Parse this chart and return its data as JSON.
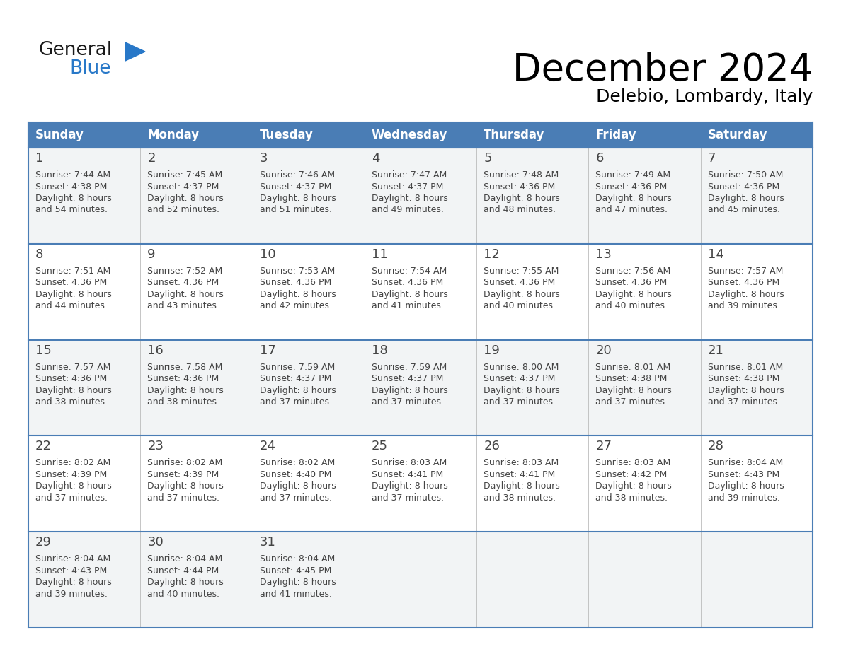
{
  "title": "December 2024",
  "subtitle": "Delebio, Lombardy, Italy",
  "header_color": "#4A7DB5",
  "header_text_color": "#FFFFFF",
  "cell_bg_even": "#F2F4F5",
  "cell_bg_odd": "#FFFFFF",
  "border_color": "#4A7DB5",
  "text_color": "#444444",
  "days_of_week": [
    "Sunday",
    "Monday",
    "Tuesday",
    "Wednesday",
    "Thursday",
    "Friday",
    "Saturday"
  ],
  "weeks": [
    [
      {
        "day": 1,
        "sunrise": "7:44 AM",
        "sunset": "4:38 PM",
        "daylight_a": "8 hours",
        "daylight_b": "and 54 minutes."
      },
      {
        "day": 2,
        "sunrise": "7:45 AM",
        "sunset": "4:37 PM",
        "daylight_a": "8 hours",
        "daylight_b": "and 52 minutes."
      },
      {
        "day": 3,
        "sunrise": "7:46 AM",
        "sunset": "4:37 PM",
        "daylight_a": "8 hours",
        "daylight_b": "and 51 minutes."
      },
      {
        "day": 4,
        "sunrise": "7:47 AM",
        "sunset": "4:37 PM",
        "daylight_a": "8 hours",
        "daylight_b": "and 49 minutes."
      },
      {
        "day": 5,
        "sunrise": "7:48 AM",
        "sunset": "4:36 PM",
        "daylight_a": "8 hours",
        "daylight_b": "and 48 minutes."
      },
      {
        "day": 6,
        "sunrise": "7:49 AM",
        "sunset": "4:36 PM",
        "daylight_a": "8 hours",
        "daylight_b": "and 47 minutes."
      },
      {
        "day": 7,
        "sunrise": "7:50 AM",
        "sunset": "4:36 PM",
        "daylight_a": "8 hours",
        "daylight_b": "and 45 minutes."
      }
    ],
    [
      {
        "day": 8,
        "sunrise": "7:51 AM",
        "sunset": "4:36 PM",
        "daylight_a": "8 hours",
        "daylight_b": "and 44 minutes."
      },
      {
        "day": 9,
        "sunrise": "7:52 AM",
        "sunset": "4:36 PM",
        "daylight_a": "8 hours",
        "daylight_b": "and 43 minutes."
      },
      {
        "day": 10,
        "sunrise": "7:53 AM",
        "sunset": "4:36 PM",
        "daylight_a": "8 hours",
        "daylight_b": "and 42 minutes."
      },
      {
        "day": 11,
        "sunrise": "7:54 AM",
        "sunset": "4:36 PM",
        "daylight_a": "8 hours",
        "daylight_b": "and 41 minutes."
      },
      {
        "day": 12,
        "sunrise": "7:55 AM",
        "sunset": "4:36 PM",
        "daylight_a": "8 hours",
        "daylight_b": "and 40 minutes."
      },
      {
        "day": 13,
        "sunrise": "7:56 AM",
        "sunset": "4:36 PM",
        "daylight_a": "8 hours",
        "daylight_b": "and 40 minutes."
      },
      {
        "day": 14,
        "sunrise": "7:57 AM",
        "sunset": "4:36 PM",
        "daylight_a": "8 hours",
        "daylight_b": "and 39 minutes."
      }
    ],
    [
      {
        "day": 15,
        "sunrise": "7:57 AM",
        "sunset": "4:36 PM",
        "daylight_a": "8 hours",
        "daylight_b": "and 38 minutes."
      },
      {
        "day": 16,
        "sunrise": "7:58 AM",
        "sunset": "4:36 PM",
        "daylight_a": "8 hours",
        "daylight_b": "and 38 minutes."
      },
      {
        "day": 17,
        "sunrise": "7:59 AM",
        "sunset": "4:37 PM",
        "daylight_a": "8 hours",
        "daylight_b": "and 37 minutes."
      },
      {
        "day": 18,
        "sunrise": "7:59 AM",
        "sunset": "4:37 PM",
        "daylight_a": "8 hours",
        "daylight_b": "and 37 minutes."
      },
      {
        "day": 19,
        "sunrise": "8:00 AM",
        "sunset": "4:37 PM",
        "daylight_a": "8 hours",
        "daylight_b": "and 37 minutes."
      },
      {
        "day": 20,
        "sunrise": "8:01 AM",
        "sunset": "4:38 PM",
        "daylight_a": "8 hours",
        "daylight_b": "and 37 minutes."
      },
      {
        "day": 21,
        "sunrise": "8:01 AM",
        "sunset": "4:38 PM",
        "daylight_a": "8 hours",
        "daylight_b": "and 37 minutes."
      }
    ],
    [
      {
        "day": 22,
        "sunrise": "8:02 AM",
        "sunset": "4:39 PM",
        "daylight_a": "8 hours",
        "daylight_b": "and 37 minutes."
      },
      {
        "day": 23,
        "sunrise": "8:02 AM",
        "sunset": "4:39 PM",
        "daylight_a": "8 hours",
        "daylight_b": "and 37 minutes."
      },
      {
        "day": 24,
        "sunrise": "8:02 AM",
        "sunset": "4:40 PM",
        "daylight_a": "8 hours",
        "daylight_b": "and 37 minutes."
      },
      {
        "day": 25,
        "sunrise": "8:03 AM",
        "sunset": "4:41 PM",
        "daylight_a": "8 hours",
        "daylight_b": "and 37 minutes."
      },
      {
        "day": 26,
        "sunrise": "8:03 AM",
        "sunset": "4:41 PM",
        "daylight_a": "8 hours",
        "daylight_b": "and 38 minutes."
      },
      {
        "day": 27,
        "sunrise": "8:03 AM",
        "sunset": "4:42 PM",
        "daylight_a": "8 hours",
        "daylight_b": "and 38 minutes."
      },
      {
        "day": 28,
        "sunrise": "8:04 AM",
        "sunset": "4:43 PM",
        "daylight_a": "8 hours",
        "daylight_b": "and 39 minutes."
      }
    ],
    [
      {
        "day": 29,
        "sunrise": "8:04 AM",
        "sunset": "4:43 PM",
        "daylight_a": "8 hours",
        "daylight_b": "and 39 minutes."
      },
      {
        "day": 30,
        "sunrise": "8:04 AM",
        "sunset": "4:44 PM",
        "daylight_a": "8 hours",
        "daylight_b": "and 40 minutes."
      },
      {
        "day": 31,
        "sunrise": "8:04 AM",
        "sunset": "4:45 PM",
        "daylight_a": "8 hours",
        "daylight_b": "and 41 minutes."
      },
      null,
      null,
      null,
      null
    ]
  ],
  "logo_general_color": "#1a1a1a",
  "logo_blue_color": "#2878C8",
  "logo_triangle_color": "#2878C8"
}
